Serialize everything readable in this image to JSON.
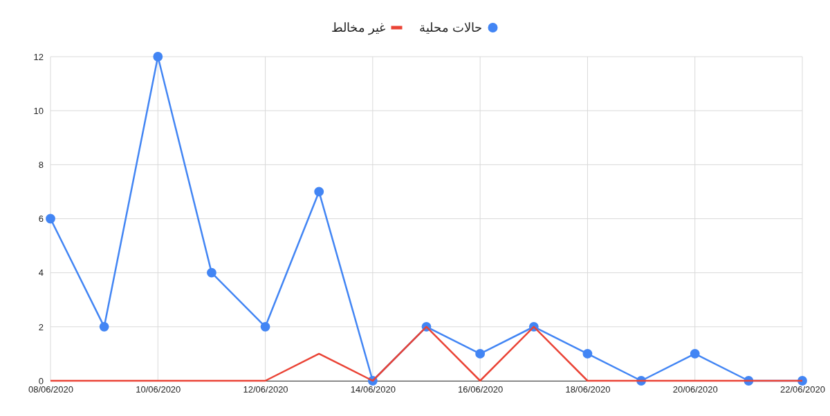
{
  "chart_data": {
    "type": "line",
    "x": [
      "2020-06-08",
      "2020-06-09",
      "2020-06-10",
      "2020-06-11",
      "2020-06-12",
      "2020-06-13",
      "2020-06-14",
      "2020-06-15",
      "2020-06-16",
      "2020-06-17",
      "2020-06-18",
      "2020-06-19",
      "2020-06-20",
      "2020-06-21",
      "2020-06-22"
    ],
    "series": [
      {
        "name": "حالات محلية",
        "color": "#4285f4",
        "marker": "circle",
        "values": [
          6,
          2,
          12,
          4,
          2,
          7,
          0,
          2,
          1,
          2,
          1,
          0,
          1,
          0,
          0
        ]
      },
      {
        "name": "غير مخالط",
        "color": "#ea4335",
        "marker": "none",
        "values": [
          0,
          0,
          0,
          0,
          0,
          1,
          0,
          2,
          0,
          2,
          0,
          0,
          0,
          0,
          0
        ]
      }
    ],
    "xlim": [
      "2020-06-08",
      "2020-06-22"
    ],
    "xticks": [
      {
        "value": "2020-06-08",
        "label": "08/06/2020"
      },
      {
        "value": "2020-06-10",
        "label": "10/06/2020"
      },
      {
        "value": "2020-06-12",
        "label": "12/06/2020"
      },
      {
        "value": "2020-06-14",
        "label": "14/06/2020"
      },
      {
        "value": "2020-06-16",
        "label": "16/06/2020"
      },
      {
        "value": "2020-06-18",
        "label": "18/06/2020"
      },
      {
        "value": "2020-06-20",
        "label": "20/06/2020"
      },
      {
        "value": "2020-06-22",
        "label": "22/06/2020"
      }
    ],
    "ylim": [
      0,
      12
    ],
    "yticks": [
      0,
      2,
      4,
      6,
      8,
      10,
      12
    ],
    "grid": true,
    "legend": "top"
  }
}
